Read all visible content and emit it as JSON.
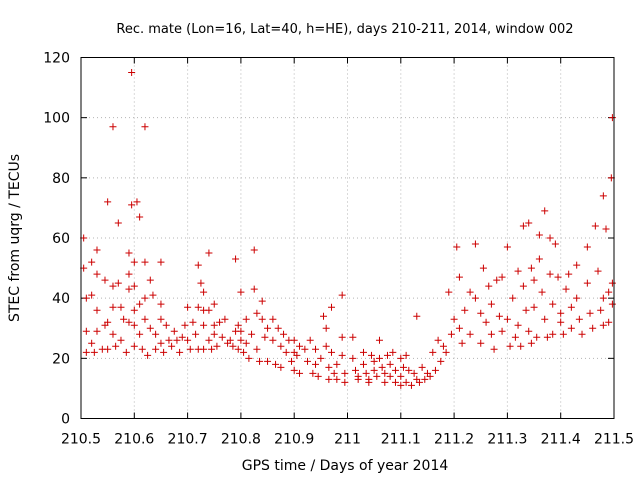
{
  "chart_data": {
    "type": "scatter",
    "title": "Rec. mate (Lon=16, Lat=40, h=HE), days 210-211, 2014, window 002",
    "xlabel": "GPS time / Days of year 2014",
    "ylabel": "STEC from uqrg / TECUs",
    "xlim": [
      210.5,
      211.5
    ],
    "ylim": [
      0,
      120
    ],
    "grid": true,
    "legend": "none",
    "marker": "+",
    "color": "#cc0000",
    "x_ticks": [
      210.5,
      210.6,
      210.7,
      210.8,
      210.9,
      211.0,
      211.1,
      211.2,
      211.3,
      211.4,
      211.5
    ],
    "x_tick_labels": [
      "210.5",
      "210.6",
      "210.7",
      "210.8",
      "210.9",
      "211",
      "211.1",
      "211.2",
      "211.3",
      "211.4",
      "211.5"
    ],
    "y_ticks": [
      0,
      20,
      40,
      60,
      80,
      100,
      120
    ],
    "y_tick_labels": [
      "0",
      "20",
      "40",
      "60",
      "80",
      "100",
      "120"
    ],
    "points": [
      [
        210.505,
        60
      ],
      [
        210.505,
        50
      ],
      [
        210.51,
        40
      ],
      [
        210.51,
        29
      ],
      [
        210.51,
        22
      ],
      [
        210.52,
        52
      ],
      [
        210.52,
        41
      ],
      [
        210.52,
        25
      ],
      [
        210.525,
        22
      ],
      [
        210.53,
        56
      ],
      [
        210.53,
        48
      ],
      [
        210.53,
        36
      ],
      [
        210.53,
        29
      ],
      [
        210.54,
        23
      ],
      [
        210.545,
        46
      ],
      [
        210.545,
        31
      ],
      [
        210.55,
        72
      ],
      [
        210.55,
        32
      ],
      [
        210.55,
        23
      ],
      [
        210.56,
        97
      ],
      [
        210.56,
        44
      ],
      [
        210.56,
        37
      ],
      [
        210.56,
        28
      ],
      [
        210.565,
        24
      ],
      [
        210.57,
        65
      ],
      [
        210.57,
        45
      ],
      [
        210.575,
        37
      ],
      [
        210.575,
        26
      ],
      [
        210.58,
        33
      ],
      [
        210.585,
        22
      ],
      [
        210.59,
        55
      ],
      [
        210.59,
        48
      ],
      [
        210.59,
        43
      ],
      [
        210.59,
        32
      ],
      [
        210.595,
        115
      ],
      [
        210.595,
        71
      ],
      [
        210.6,
        52
      ],
      [
        210.6,
        44
      ],
      [
        210.6,
        36
      ],
      [
        210.6,
        31
      ],
      [
        210.6,
        24
      ],
      [
        210.605,
        72
      ],
      [
        210.61,
        67
      ],
      [
        210.61,
        38
      ],
      [
        210.61,
        28
      ],
      [
        210.615,
        23
      ],
      [
        210.62,
        97
      ],
      [
        210.62,
        52
      ],
      [
        210.62,
        40
      ],
      [
        210.62,
        33
      ],
      [
        210.625,
        21
      ],
      [
        210.63,
        46
      ],
      [
        210.63,
        30
      ],
      [
        210.635,
        41
      ],
      [
        210.64,
        28
      ],
      [
        210.64,
        23
      ],
      [
        210.65,
        52
      ],
      [
        210.65,
        38
      ],
      [
        210.65,
        33
      ],
      [
        210.65,
        25
      ],
      [
        210.655,
        22
      ],
      [
        210.66,
        31
      ],
      [
        210.665,
        26
      ],
      [
        210.67,
        24
      ],
      [
        210.675,
        29
      ],
      [
        210.68,
        26
      ],
      [
        210.685,
        22
      ],
      [
        210.69,
        27
      ],
      [
        210.695,
        31
      ],
      [
        210.7,
        37
      ],
      [
        210.7,
        26
      ],
      [
        210.705,
        23
      ],
      [
        210.71,
        32
      ],
      [
        210.715,
        28
      ],
      [
        210.72,
        51
      ],
      [
        210.72,
        37
      ],
      [
        210.72,
        23
      ],
      [
        210.725,
        45
      ],
      [
        210.73,
        42
      ],
      [
        210.73,
        36
      ],
      [
        210.73,
        31
      ],
      [
        210.73,
        23
      ],
      [
        210.74,
        55
      ],
      [
        210.74,
        36
      ],
      [
        210.74,
        26
      ],
      [
        210.745,
        23
      ],
      [
        210.75,
        38
      ],
      [
        210.75,
        31
      ],
      [
        210.75,
        28
      ],
      [
        210.755,
        24
      ],
      [
        210.76,
        32
      ],
      [
        210.765,
        27
      ],
      [
        210.77,
        33
      ],
      [
        210.775,
        25
      ],
      [
        210.78,
        26
      ],
      [
        210.785,
        24
      ],
      [
        210.79,
        53
      ],
      [
        210.79,
        29
      ],
      [
        210.795,
        31
      ],
      [
        210.795,
        23
      ],
      [
        210.8,
        42
      ],
      [
        210.8,
        29
      ],
      [
        210.8,
        26
      ],
      [
        210.805,
        22
      ],
      [
        210.81,
        33
      ],
      [
        210.81,
        25
      ],
      [
        210.815,
        20
      ],
      [
        210.82,
        28
      ],
      [
        210.825,
        56
      ],
      [
        210.825,
        43
      ],
      [
        210.83,
        35
      ],
      [
        210.83,
        23
      ],
      [
        210.835,
        19
      ],
      [
        210.84,
        39
      ],
      [
        210.84,
        33
      ],
      [
        210.845,
        27
      ],
      [
        210.85,
        30
      ],
      [
        210.85,
        19
      ],
      [
        210.86,
        33
      ],
      [
        210.86,
        26
      ],
      [
        210.865,
        18
      ],
      [
        210.87,
        30
      ],
      [
        210.875,
        24
      ],
      [
        210.875,
        17
      ],
      [
        210.88,
        28
      ],
      [
        210.885,
        22
      ],
      [
        210.89,
        26
      ],
      [
        210.895,
        19
      ],
      [
        210.9,
        26
      ],
      [
        210.9,
        22
      ],
      [
        210.9,
        16
      ],
      [
        210.905,
        21
      ],
      [
        210.91,
        24
      ],
      [
        210.91,
        15
      ],
      [
        210.92,
        23
      ],
      [
        210.925,
        19
      ],
      [
        210.93,
        26
      ],
      [
        210.935,
        15
      ],
      [
        210.94,
        23
      ],
      [
        210.94,
        18
      ],
      [
        210.945,
        14
      ],
      [
        210.95,
        20
      ],
      [
        210.955,
        34
      ],
      [
        210.96,
        30
      ],
      [
        210.96,
        24
      ],
      [
        210.965,
        17
      ],
      [
        210.965,
        13
      ],
      [
        210.97,
        37
      ],
      [
        210.97,
        22
      ],
      [
        210.975,
        15
      ],
      [
        210.98,
        18
      ],
      [
        210.98,
        13
      ],
      [
        210.99,
        41
      ],
      [
        210.99,
        27
      ],
      [
        210.99,
        21
      ],
      [
        210.995,
        15
      ],
      [
        210.995,
        12
      ],
      [
        211.01,
        27
      ],
      [
        211.01,
        20
      ],
      [
        211.015,
        16
      ],
      [
        211.02,
        14
      ],
      [
        211.02,
        13
      ],
      [
        211.03,
        22
      ],
      [
        211.03,
        18
      ],
      [
        211.035,
        15
      ],
      [
        211.04,
        13
      ],
      [
        211.04,
        12
      ],
      [
        211.045,
        21
      ],
      [
        211.05,
        19
      ],
      [
        211.05,
        16
      ],
      [
        211.055,
        14
      ],
      [
        211.06,
        20
      ],
      [
        211.06,
        26
      ],
      [
        211.065,
        17
      ],
      [
        211.07,
        15
      ],
      [
        211.07,
        12
      ],
      [
        211.075,
        21
      ],
      [
        211.08,
        18
      ],
      [
        211.08,
        14
      ],
      [
        211.085,
        22
      ],
      [
        211.09,
        16
      ],
      [
        211.09,
        12
      ],
      [
        211.1,
        20
      ],
      [
        211.1,
        14
      ],
      [
        211.1,
        11
      ],
      [
        211.105,
        17
      ],
      [
        211.11,
        21
      ],
      [
        211.11,
        12
      ],
      [
        211.115,
        16
      ],
      [
        211.12,
        11
      ],
      [
        211.125,
        15
      ],
      [
        211.13,
        13
      ],
      [
        211.13,
        34
      ],
      [
        211.135,
        12
      ],
      [
        211.14,
        17
      ],
      [
        211.145,
        13
      ],
      [
        211.15,
        15
      ],
      [
        211.155,
        14
      ],
      [
        211.16,
        22
      ],
      [
        211.165,
        16
      ],
      [
        211.17,
        26
      ],
      [
        211.175,
        19
      ],
      [
        211.18,
        24
      ],
      [
        211.185,
        22
      ],
      [
        211.19,
        42
      ],
      [
        211.195,
        28
      ],
      [
        211.2,
        33
      ],
      [
        211.205,
        57
      ],
      [
        211.21,
        47
      ],
      [
        211.21,
        30
      ],
      [
        211.215,
        25
      ],
      [
        211.22,
        36
      ],
      [
        211.23,
        42
      ],
      [
        211.23,
        28
      ],
      [
        211.24,
        58
      ],
      [
        211.24,
        40
      ],
      [
        211.25,
        35
      ],
      [
        211.25,
        25
      ],
      [
        211.255,
        50
      ],
      [
        211.26,
        32
      ],
      [
        211.265,
        44
      ],
      [
        211.27,
        38
      ],
      [
        211.27,
        28
      ],
      [
        211.275,
        23
      ],
      [
        211.28,
        46
      ],
      [
        211.285,
        34
      ],
      [
        211.29,
        47
      ],
      [
        211.29,
        29
      ],
      [
        211.3,
        57
      ],
      [
        211.3,
        33
      ],
      [
        211.305,
        24
      ],
      [
        211.31,
        40
      ],
      [
        211.315,
        27
      ],
      [
        211.32,
        49
      ],
      [
        211.32,
        31
      ],
      [
        211.325,
        24
      ],
      [
        211.33,
        64
      ],
      [
        211.33,
        44
      ],
      [
        211.335,
        36
      ],
      [
        211.34,
        65
      ],
      [
        211.34,
        29
      ],
      [
        211.345,
        50
      ],
      [
        211.345,
        25
      ],
      [
        211.35,
        46
      ],
      [
        211.35,
        37
      ],
      [
        211.355,
        27
      ],
      [
        211.36,
        61
      ],
      [
        211.36,
        53
      ],
      [
        211.365,
        42
      ],
      [
        211.37,
        69
      ],
      [
        211.37,
        33
      ],
      [
        211.375,
        27
      ],
      [
        211.38,
        60
      ],
      [
        211.38,
        48
      ],
      [
        211.385,
        38
      ],
      [
        211.385,
        28
      ],
      [
        211.39,
        58
      ],
      [
        211.395,
        47
      ],
      [
        211.4,
        35
      ],
      [
        211.4,
        32
      ],
      [
        211.405,
        28
      ],
      [
        211.41,
        43
      ],
      [
        211.415,
        48
      ],
      [
        211.42,
        37
      ],
      [
        211.42,
        30
      ],
      [
        211.43,
        51
      ],
      [
        211.43,
        40
      ],
      [
        211.435,
        33
      ],
      [
        211.44,
        28
      ],
      [
        211.45,
        57
      ],
      [
        211.45,
        45
      ],
      [
        211.455,
        35
      ],
      [
        211.46,
        30
      ],
      [
        211.465,
        64
      ],
      [
        211.47,
        49
      ],
      [
        211.475,
        36
      ],
      [
        211.48,
        74
      ],
      [
        211.48,
        40
      ],
      [
        211.48,
        31
      ],
      [
        211.485,
        63
      ],
      [
        211.49,
        42
      ],
      [
        211.49,
        32
      ],
      [
        211.495,
        80
      ],
      [
        211.497,
        100
      ],
      [
        211.497,
        45
      ],
      [
        211.497,
        38
      ]
    ]
  }
}
